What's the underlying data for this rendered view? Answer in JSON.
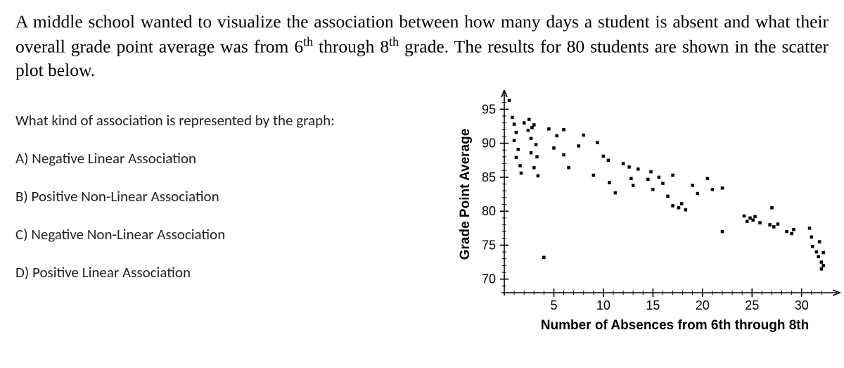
{
  "intro_html": "A middle school wanted to visualize the association between how many days a student is absent and what their overall grade point average was from 6<sup>th</sup> through 8<sup>th</sup> grade. The results for 80 students are shown in the scatter plot below.",
  "question": {
    "prompt": "What kind of association is represented by the graph:",
    "options": [
      "A) Negative Linear Association",
      "B) Positive Non-Linear Association",
      "C) Negative Non-Linear Association",
      "D) Positive Linear Association"
    ]
  },
  "chart": {
    "type": "scatter",
    "xlabel": "Number of Absences from 6th through 8th",
    "ylabel": "Grade Point Average",
    "xlim": [
      0,
      33
    ],
    "ylim": [
      68,
      97
    ],
    "xticks_major": [
      5,
      10,
      15,
      20,
      25,
      30
    ],
    "yticks_major": [
      70,
      75,
      80,
      85,
      90,
      95
    ],
    "minor_step_x": 1,
    "minor_step_y": 1,
    "axis_color": "#000000",
    "tick_color": "#000000",
    "point_color": "#000000",
    "background_color": "#ffffff",
    "point_size": 4.5,
    "label_fontsize_axis": 19,
    "label_fontsize_tick": 18,
    "font_family_axis": "Arial, sans-serif",
    "points": [
      [
        0.5,
        96.3
      ],
      [
        0.8,
        93.8
      ],
      [
        1.0,
        92.8
      ],
      [
        1.2,
        91.6
      ],
      [
        1.0,
        90.4
      ],
      [
        1.4,
        89.1
      ],
      [
        1.2,
        87.9
      ],
      [
        1.6,
        86.7
      ],
      [
        1.7,
        85.6
      ],
      [
        2.0,
        93.0
      ],
      [
        2.4,
        91.9
      ],
      [
        2.5,
        93.5
      ],
      [
        2.8,
        92.3
      ],
      [
        3.0,
        92.7
      ],
      [
        2.7,
        90.7
      ],
      [
        3.2,
        89.8
      ],
      [
        2.7,
        88.6
      ],
      [
        3.3,
        88.0
      ],
      [
        3.0,
        86.4
      ],
      [
        3.4,
        85.2
      ],
      [
        4.5,
        92.1
      ],
      [
        5.0,
        89.3
      ],
      [
        5.3,
        91.1
      ],
      [
        6.0,
        92.0
      ],
      [
        6.0,
        88.3
      ],
      [
        6.5,
        86.4
      ],
      [
        7.5,
        89.6
      ],
      [
        8.0,
        91.2
      ],
      [
        9.0,
        85.3
      ],
      [
        9.4,
        90.1
      ],
      [
        10.0,
        88.1
      ],
      [
        10.5,
        87.5
      ],
      [
        10.6,
        84.2
      ],
      [
        11.2,
        82.7
      ],
      [
        12.0,
        87.0
      ],
      [
        12.6,
        86.5
      ],
      [
        12.8,
        84.8
      ],
      [
        13.0,
        83.8
      ],
      [
        13.5,
        86.2
      ],
      [
        14.5,
        84.7
      ],
      [
        14.8,
        85.8
      ],
      [
        15.0,
        83.2
      ],
      [
        15.6,
        85.0
      ],
      [
        16.0,
        84.1
      ],
      [
        16.5,
        82.2
      ],
      [
        17.0,
        85.3
      ],
      [
        17.0,
        80.8
      ],
      [
        17.6,
        80.5
      ],
      [
        17.9,
        81.1
      ],
      [
        18.3,
        80.2
      ],
      [
        19.0,
        83.8
      ],
      [
        19.5,
        82.6
      ],
      [
        20.5,
        84.8
      ],
      [
        21.0,
        83.2
      ],
      [
        22.0,
        83.4
      ],
      [
        22.0,
        77.0
      ],
      [
        24.2,
        79.3
      ],
      [
        24.5,
        78.5
      ],
      [
        24.8,
        79.0
      ],
      [
        25.1,
        78.7
      ],
      [
        25.3,
        79.2
      ],
      [
        25.8,
        78.3
      ],
      [
        26.8,
        78.0
      ],
      [
        27.2,
        77.7
      ],
      [
        27.6,
        78.1
      ],
      [
        27.0,
        80.5
      ],
      [
        28.5,
        77.0
      ],
      [
        29.0,
        76.7
      ],
      [
        29.2,
        77.3
      ],
      [
        30.8,
        77.5
      ],
      [
        31.0,
        76.2
      ],
      [
        31.1,
        74.8
      ],
      [
        31.5,
        74.0
      ],
      [
        31.7,
        73.3
      ],
      [
        31.8,
        75.5
      ],
      [
        32.0,
        72.5
      ],
      [
        32.0,
        71.5
      ],
      [
        32.2,
        73.9
      ],
      [
        32.2,
        72.0
      ],
      [
        4.0,
        73.2
      ]
    ]
  }
}
